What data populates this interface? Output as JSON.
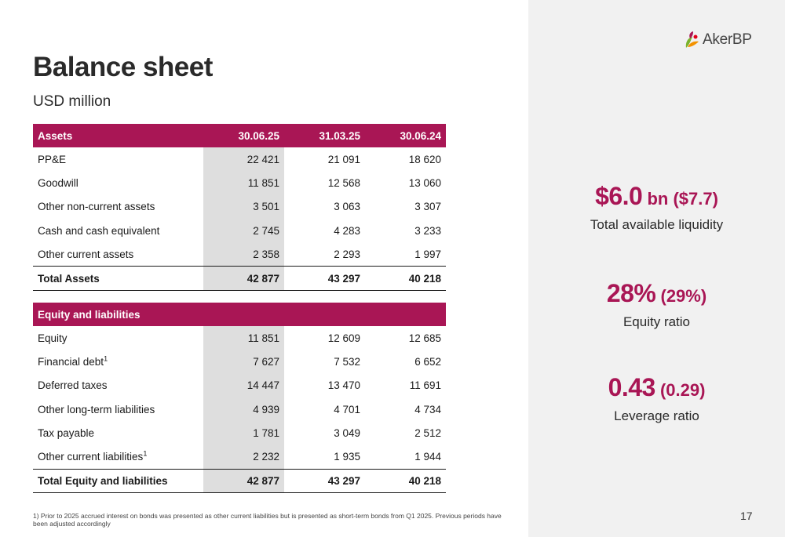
{
  "brand": {
    "logo_text": "AkerBP",
    "accent_color": "#a91655"
  },
  "header": {
    "title": "Balance sheet",
    "subtitle": "USD million"
  },
  "assets_table": {
    "columns": [
      "Assets",
      "30.06.25",
      "31.03.25",
      "30.06.24"
    ],
    "rows": [
      {
        "label": "PP&E",
        "values": [
          "22 421",
          "21 091",
          "18 620"
        ]
      },
      {
        "label": "Goodwill",
        "values": [
          "11 851",
          "12 568",
          "13 060"
        ]
      },
      {
        "label": "Other non-current assets",
        "values": [
          "3 501",
          "3 063",
          "3 307"
        ]
      },
      {
        "label": "Cash and cash equivalent",
        "values": [
          "2 745",
          "4 283",
          "3 233"
        ]
      },
      {
        "label": "Other current assets",
        "values": [
          "2 358",
          "2 293",
          "1 997"
        ]
      }
    ],
    "total": {
      "label": "Total Assets",
      "values": [
        "42 877",
        "43 297",
        "40 218"
      ]
    }
  },
  "equity_table": {
    "header": "Equity and liabilities",
    "rows": [
      {
        "label": "Equity",
        "sup": "",
        "values": [
          "11 851",
          "12 609",
          "12 685"
        ]
      },
      {
        "label": "Financial debt",
        "sup": "1",
        "values": [
          "7 627",
          "7 532",
          "6 652"
        ]
      },
      {
        "label": "Deferred taxes",
        "sup": "",
        "values": [
          "14 447",
          "13 470",
          "11 691"
        ]
      },
      {
        "label": "Other long-term liabilities",
        "sup": "",
        "values": [
          "4 939",
          "4 701",
          "4 734"
        ]
      },
      {
        "label": "Tax payable",
        "sup": "",
        "values": [
          "1 781",
          "3 049",
          "2 512"
        ]
      },
      {
        "label": "Other current liabilities",
        "sup": "1",
        "values": [
          "2 232",
          "1 935",
          "1 944"
        ]
      }
    ],
    "total": {
      "label": "Total Equity and liabilities",
      "values": [
        "42 877",
        "43 297",
        "40 218"
      ]
    }
  },
  "kpis": [
    {
      "value": "$6.0",
      "value_suffix": " bn ($7.7)",
      "label": "Total available liquidity"
    },
    {
      "value": "28%",
      "value_suffix": " (29%)",
      "label": "Equity ratio"
    },
    {
      "value": "0.43",
      "value_suffix": " (0.29)",
      "label": "Leverage ratio"
    }
  ],
  "footnote": "1) Prior to 2025 accrued interest on bonds was presented as other current liabilities but is presented as short-term bonds from Q1 2025. Previous periods have been adjusted accordingly",
  "page_number": "17"
}
